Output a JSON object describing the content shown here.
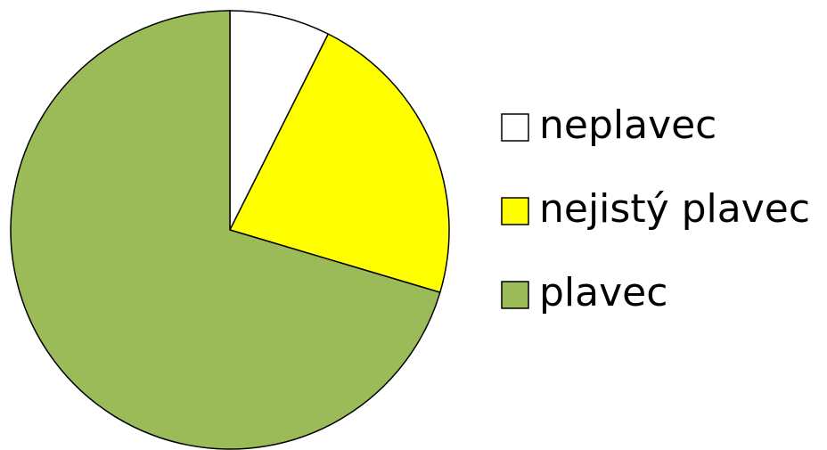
{
  "chart_data": {
    "type": "pie",
    "categories": [
      "neplavec",
      "nejistý plavec",
      "plavec"
    ],
    "values": [
      7.4,
      22.2,
      70.4
    ],
    "colors": [
      "#ffffff",
      "#ffff00",
      "#9bbb59"
    ],
    "legend": "right"
  }
}
